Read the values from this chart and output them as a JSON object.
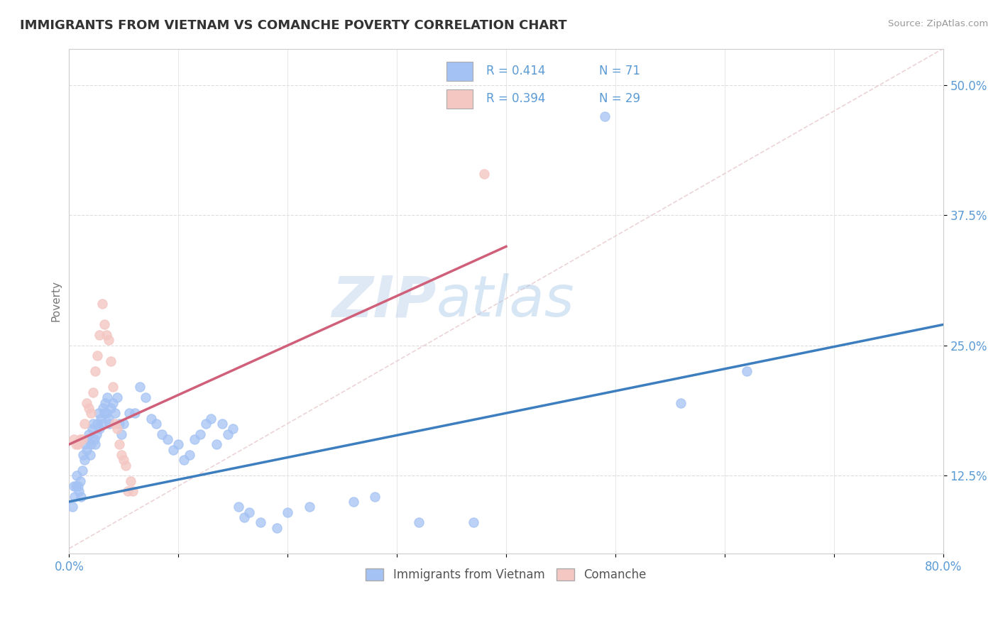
{
  "title": "IMMIGRANTS FROM VIETNAM VS COMANCHE POVERTY CORRELATION CHART",
  "source": "Source: ZipAtlas.com",
  "ylabel": "Poverty",
  "xlim": [
    0.0,
    0.8
  ],
  "ylim": [
    0.05,
    0.535
  ],
  "yticks": [
    0.125,
    0.25,
    0.375,
    0.5
  ],
  "ytick_labels": [
    "12.5%",
    "25.0%",
    "37.5%",
    "50.0%"
  ],
  "color_blue": "#a4c2f4",
  "color_pink": "#f4c7c3",
  "color_blue_line": "#3d7ebf",
  "color_pink_line": "#d0607a",
  "color_dashed": "#e8c8cc",
  "watermark_zip": "ZIP",
  "watermark_atlas": "atlas",
  "blue_points": [
    [
      0.003,
      0.095
    ],
    [
      0.004,
      0.115
    ],
    [
      0.005,
      0.105
    ],
    [
      0.006,
      0.115
    ],
    [
      0.007,
      0.125
    ],
    [
      0.008,
      0.115
    ],
    [
      0.009,
      0.11
    ],
    [
      0.01,
      0.12
    ],
    [
      0.011,
      0.105
    ],
    [
      0.012,
      0.13
    ],
    [
      0.013,
      0.145
    ],
    [
      0.014,
      0.14
    ],
    [
      0.015,
      0.155
    ],
    [
      0.016,
      0.15
    ],
    [
      0.017,
      0.16
    ],
    [
      0.018,
      0.165
    ],
    [
      0.019,
      0.145
    ],
    [
      0.02,
      0.155
    ],
    [
      0.021,
      0.17
    ],
    [
      0.022,
      0.175
    ],
    [
      0.023,
      0.16
    ],
    [
      0.024,
      0.155
    ],
    [
      0.025,
      0.165
    ],
    [
      0.026,
      0.175
    ],
    [
      0.027,
      0.185
    ],
    [
      0.028,
      0.17
    ],
    [
      0.029,
      0.18
    ],
    [
      0.03,
      0.175
    ],
    [
      0.031,
      0.19
    ],
    [
      0.032,
      0.185
    ],
    [
      0.033,
      0.195
    ],
    [
      0.034,
      0.185
    ],
    [
      0.035,
      0.2
    ],
    [
      0.036,
      0.18
    ],
    [
      0.037,
      0.175
    ],
    [
      0.038,
      0.19
    ],
    [
      0.04,
      0.195
    ],
    [
      0.042,
      0.185
    ],
    [
      0.044,
      0.2
    ],
    [
      0.046,
      0.175
    ],
    [
      0.048,
      0.165
    ],
    [
      0.05,
      0.175
    ],
    [
      0.055,
      0.185
    ],
    [
      0.06,
      0.185
    ],
    [
      0.065,
      0.21
    ],
    [
      0.07,
      0.2
    ],
    [
      0.075,
      0.18
    ],
    [
      0.08,
      0.175
    ],
    [
      0.085,
      0.165
    ],
    [
      0.09,
      0.16
    ],
    [
      0.095,
      0.15
    ],
    [
      0.1,
      0.155
    ],
    [
      0.105,
      0.14
    ],
    [
      0.11,
      0.145
    ],
    [
      0.115,
      0.16
    ],
    [
      0.12,
      0.165
    ],
    [
      0.125,
      0.175
    ],
    [
      0.13,
      0.18
    ],
    [
      0.135,
      0.155
    ],
    [
      0.14,
      0.175
    ],
    [
      0.145,
      0.165
    ],
    [
      0.15,
      0.17
    ],
    [
      0.155,
      0.095
    ],
    [
      0.16,
      0.085
    ],
    [
      0.165,
      0.09
    ],
    [
      0.175,
      0.08
    ],
    [
      0.19,
      0.075
    ],
    [
      0.2,
      0.09
    ],
    [
      0.22,
      0.095
    ],
    [
      0.26,
      0.1
    ],
    [
      0.28,
      0.105
    ],
    [
      0.32,
      0.08
    ],
    [
      0.37,
      0.08
    ],
    [
      0.49,
      0.47
    ],
    [
      0.56,
      0.195
    ],
    [
      0.62,
      0.225
    ]
  ],
  "pink_points": [
    [
      0.004,
      0.16
    ],
    [
      0.006,
      0.155
    ],
    [
      0.008,
      0.155
    ],
    [
      0.01,
      0.16
    ],
    [
      0.012,
      0.16
    ],
    [
      0.014,
      0.175
    ],
    [
      0.016,
      0.195
    ],
    [
      0.018,
      0.19
    ],
    [
      0.02,
      0.185
    ],
    [
      0.022,
      0.205
    ],
    [
      0.024,
      0.225
    ],
    [
      0.026,
      0.24
    ],
    [
      0.028,
      0.26
    ],
    [
      0.03,
      0.29
    ],
    [
      0.032,
      0.27
    ],
    [
      0.034,
      0.26
    ],
    [
      0.036,
      0.255
    ],
    [
      0.038,
      0.235
    ],
    [
      0.04,
      0.21
    ],
    [
      0.042,
      0.175
    ],
    [
      0.044,
      0.17
    ],
    [
      0.046,
      0.155
    ],
    [
      0.048,
      0.145
    ],
    [
      0.05,
      0.14
    ],
    [
      0.052,
      0.135
    ],
    [
      0.054,
      0.11
    ],
    [
      0.056,
      0.12
    ],
    [
      0.058,
      0.11
    ],
    [
      0.38,
      0.415
    ]
  ]
}
